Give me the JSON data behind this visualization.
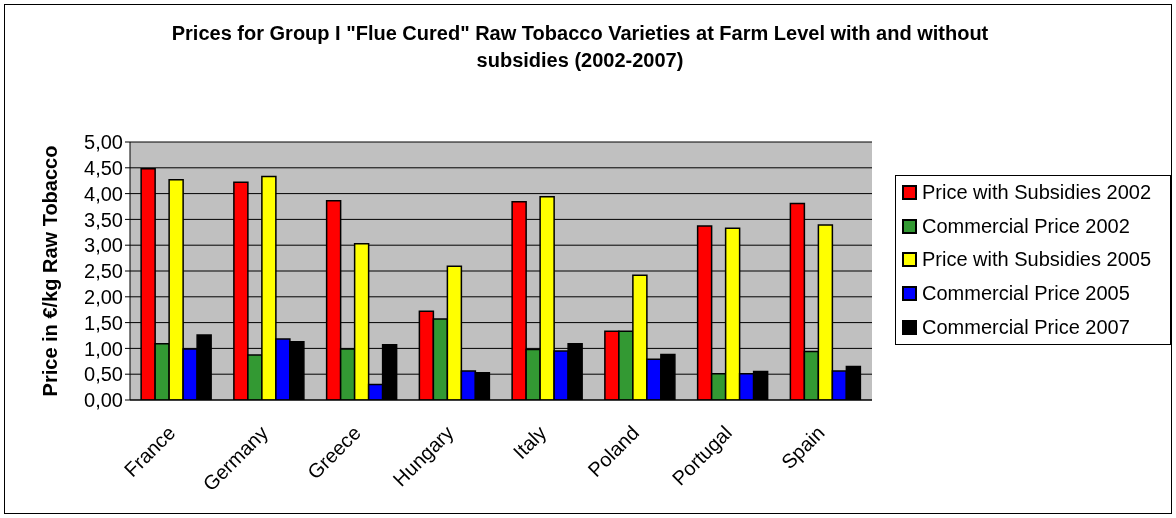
{
  "chart_data": {
    "type": "bar",
    "title": "Prices for Group I \"Flue Cured\" Raw Tobacco Varieties at Farm Level with and without subsidies (2002-2007)",
    "ylabel": "Price in €/kg Raw Tobacco",
    "categories": [
      "France",
      "Germany",
      "Greece",
      "Hungary",
      "Italy",
      "Poland",
      "Portugal",
      "Spain"
    ],
    "series": [
      {
        "name": "Price with Subsidies 2002",
        "color": "#ff0000",
        "values": [
          4.48,
          4.22,
          3.86,
          1.72,
          3.84,
          1.33,
          3.37,
          3.81
        ]
      },
      {
        "name": "Commercial Price 2002",
        "color": "#339933",
        "values": [
          1.09,
          0.87,
          0.99,
          1.57,
          0.98,
          1.33,
          0.51,
          0.94
        ]
      },
      {
        "name": "Price with Subsidies 2005",
        "color": "#ffff00",
        "values": [
          4.27,
          4.33,
          3.03,
          2.59,
          3.94,
          2.42,
          3.33,
          3.39
        ]
      },
      {
        "name": "Commercial Price 2005",
        "color": "#0000ff",
        "values": [
          0.99,
          1.18,
          0.3,
          0.56,
          0.95,
          0.79,
          0.51,
          0.56
        ]
      },
      {
        "name": "Commercial Price 2007",
        "color": "#000000",
        "values": [
          1.26,
          1.13,
          1.07,
          0.53,
          1.09,
          0.88,
          0.55,
          0.65
        ]
      }
    ],
    "ylim": [
      0,
      5
    ],
    "yticks": [
      {
        "value": 0,
        "label": "0,00"
      },
      {
        "value": 0.5,
        "label": "0,50"
      },
      {
        "value": 1,
        "label": "1,00"
      },
      {
        "value": 1.5,
        "label": "1,50"
      },
      {
        "value": 2,
        "label": "2,00"
      },
      {
        "value": 2.5,
        "label": "2,50"
      },
      {
        "value": 3,
        "label": "3,00"
      },
      {
        "value": 3.5,
        "label": "3,50"
      },
      {
        "value": 4,
        "label": "4,00"
      },
      {
        "value": 4.5,
        "label": "4,50"
      },
      {
        "value": 5,
        "label": "5,00"
      }
    ],
    "grid": "y",
    "legend": "right"
  }
}
